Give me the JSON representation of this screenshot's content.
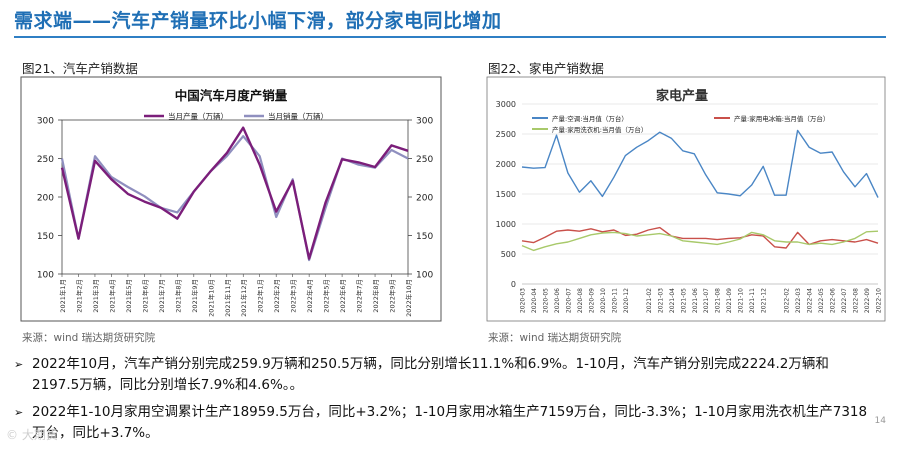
{
  "page": {
    "title": "需求端——汽车产销量环比小幅下滑，部分家电同比增加",
    "page_number": "14",
    "watermark": "© 大期货"
  },
  "figures": [
    {
      "caption": "图21、汽车产销数据",
      "source": "来源：wind   瑞达期货研究院"
    },
    {
      "caption": "图22、家电产销数据",
      "source": "来源：wind   瑞达期货研究院"
    }
  ],
  "bullets": [
    "2022年10月，汽车产销分别完成259.9万辆和250.5万辆，同比分别增长11.1%和6.9%。1-10月，汽车产销分别完成2224.2万辆和2197.5万辆，同比分别增长7.9%和4.6%。。",
    "2022年1-10月家用空调累计生产18959.5万台，同比+3.2%；1-10月家用冰箱生产7159万台，同比-3.3%；1-10月家用洗衣机生产7318万台，同比+3.7%。"
  ],
  "chart_data": [
    {
      "type": "line",
      "title": "中国汽车月度产销量",
      "categories": [
        "2021年1月",
        "2021年2月",
        "2021年3月",
        "2021年4月",
        "2021年5月",
        "2021年6月",
        "2021年7月",
        "2021年8月",
        "2021年9月",
        "2021年10月",
        "2021年11月",
        "2021年12月",
        "2022年1月",
        "2022年2月",
        "2022年3月",
        "2022年4月",
        "2022年5月",
        "2022年6月",
        "2022年7月",
        "2022年8月",
        "2022年9月",
        "2022年10月"
      ],
      "series": [
        {
          "name": "当月产量（万辆）",
          "color": "#7b1e7a",
          "values": [
            238,
            146,
            247,
            223,
            204,
            194,
            186,
            172,
            207,
            233,
            257,
            290,
            242,
            181,
            221,
            120,
            193,
            249,
            245,
            239,
            267,
            260
          ]
        },
        {
          "name": "当月销量（万辆）",
          "color": "#8f8fbf",
          "values": [
            250,
            146,
            253,
            226,
            213,
            201,
            186,
            180,
            207,
            233,
            253,
            279,
            253,
            174,
            223,
            118,
            186,
            250,
            242,
            238,
            261,
            250
          ]
        }
      ],
      "ylim": [
        100,
        300
      ],
      "yticks": [
        100,
        150,
        200,
        250,
        300
      ],
      "y2ticks": [
        100,
        150,
        200,
        250,
        300
      ],
      "legend": "top",
      "grid": false
    },
    {
      "type": "line",
      "title": "家电产量",
      "categories": [
        "2020-03",
        "2020-04",
        "2020-05",
        "2020-06",
        "2020-07",
        "2020-08",
        "2020-09",
        "2020-10",
        "2020-11",
        "2020-12",
        "2021-01",
        "2021-02",
        "2021-03",
        "2021-04",
        "2021-05",
        "2021-06",
        "2021-07",
        "2021-08",
        "2021-09",
        "2021-10",
        "2021-11",
        "2021-12",
        "2022-01",
        "2022-02",
        "2022-03",
        "2022-04",
        "2022-05",
        "2022-06",
        "2022-07",
        "2022-08",
        "2022-09",
        "2022-10"
      ],
      "xtick_labels": [
        "2020-03",
        "2020-04",
        "2020-05",
        "2020-06",
        "2020-07",
        "2020-08",
        "2020-09",
        "2020-10",
        "2020-11",
        "2020-12",
        "2021-02",
        "2021-03",
        "2021-04",
        "2021-05",
        "2021-06",
        "2021-07",
        "2021-08",
        "2021-09",
        "2021-10",
        "2021-11",
        "2021-12",
        "2022-02",
        "2022-03",
        "2022-04",
        "2022-05",
        "2022-06",
        "2022-07",
        "2022-08",
        "2022-09",
        "2022-10"
      ],
      "series": [
        {
          "name": "产量:空调:当月值（万台）",
          "color": "#4a86c5",
          "values": [
            1950,
            1930,
            1940,
            2480,
            1850,
            1530,
            1720,
            1460,
            1780,
            2140,
            2280,
            2390,
            2530,
            2430,
            2220,
            2170,
            1820,
            1520,
            1500,
            1470,
            1650,
            1960,
            1480,
            1480,
            2560,
            2280,
            2180,
            2200,
            1870,
            1620,
            1840,
            1440
          ]
        },
        {
          "name": "产量:家用电冰箱:当月值（万台）",
          "color": "#c9504a",
          "values": [
            720,
            690,
            780,
            880,
            900,
            880,
            920,
            870,
            900,
            810,
            830,
            900,
            940,
            800,
            760,
            760,
            760,
            740,
            760,
            770,
            820,
            800,
            620,
            600,
            860,
            660,
            720,
            740,
            720,
            700,
            740,
            680
          ]
        },
        {
          "name": "产量:家用洗衣机:当月值（万台）",
          "color": "#a8c96a",
          "values": [
            640,
            560,
            620,
            670,
            700,
            760,
            820,
            850,
            860,
            840,
            800,
            820,
            840,
            800,
            720,
            700,
            680,
            660,
            700,
            750,
            860,
            820,
            720,
            700,
            700,
            660,
            680,
            660,
            700,
            760,
            870,
            880
          ]
        }
      ],
      "ylim": [
        0,
        3000
      ],
      "yticks": [
        0,
        500,
        1000,
        1500,
        2000,
        2500,
        3000
      ],
      "legend": "top-left",
      "grid": true
    }
  ]
}
